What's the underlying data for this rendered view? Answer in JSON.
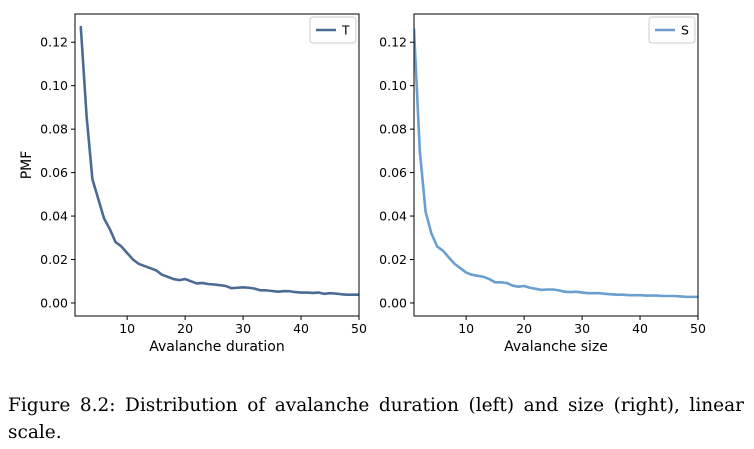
{
  "chart_data": [
    {
      "type": "line",
      "xlabel": "Avalanche duration",
      "ylabel": "PMF",
      "xlim": [
        1,
        50
      ],
      "ylim": [
        -0.006,
        0.133
      ],
      "xticks": [
        "10",
        "20",
        "30",
        "40",
        "50"
      ],
      "yticks": [
        "0.00",
        "0.02",
        "0.04",
        "0.06",
        "0.08",
        "0.10",
        "0.12"
      ],
      "legend_position": "top-right",
      "series": [
        {
          "name": "T",
          "color": "#4c6b94",
          "x": [
            2,
            3,
            4,
            5,
            6,
            7,
            8,
            9,
            10,
            11,
            12,
            13,
            14,
            15,
            16,
            17,
            18,
            19,
            20,
            21,
            22,
            23,
            24,
            25,
            26,
            27,
            28,
            29,
            30,
            31,
            32,
            33,
            34,
            35,
            36,
            37,
            38,
            39,
            40,
            41,
            42,
            43,
            44,
            45,
            46,
            47,
            48,
            49,
            50
          ],
          "y": [
            0.127,
            0.086,
            0.057,
            0.048,
            0.039,
            0.034,
            0.028,
            0.026,
            0.023,
            0.02,
            0.018,
            0.017,
            0.016,
            0.015,
            0.013,
            0.012,
            0.011,
            0.0105,
            0.011,
            0.01,
            0.009,
            0.0092,
            0.0087,
            0.0085,
            0.0082,
            0.0078,
            0.0068,
            0.007,
            0.0072,
            0.007,
            0.0066,
            0.0058,
            0.0058,
            0.0055,
            0.0052,
            0.0054,
            0.0054,
            0.005,
            0.0048,
            0.0048,
            0.0046,
            0.0048,
            0.0042,
            0.0045,
            0.0043,
            0.004,
            0.0038,
            0.0038,
            0.0038
          ]
        }
      ]
    },
    {
      "type": "line",
      "xlabel": "Avalanche size",
      "ylabel": "",
      "xlim": [
        1,
        50
      ],
      "ylim": [
        -0.006,
        0.133
      ],
      "xticks": [
        "10",
        "20",
        "30",
        "40",
        "50"
      ],
      "yticks": [
        "0.00",
        "0.02",
        "0.04",
        "0.06",
        "0.08",
        "0.10",
        "0.12"
      ],
      "legend_position": "top-right",
      "series": [
        {
          "name": "S",
          "color": "#6a9fd0",
          "x": [
            1,
            2,
            3,
            4,
            5,
            6,
            7,
            8,
            9,
            10,
            11,
            12,
            13,
            14,
            15,
            16,
            17,
            18,
            19,
            20,
            21,
            22,
            23,
            24,
            25,
            26,
            27,
            28,
            29,
            30,
            31,
            32,
            33,
            34,
            35,
            36,
            37,
            38,
            39,
            40,
            41,
            42,
            43,
            44,
            45,
            46,
            47,
            48,
            49,
            50
          ],
          "y": [
            0.126,
            0.07,
            0.042,
            0.032,
            0.026,
            0.024,
            0.021,
            0.018,
            0.016,
            0.014,
            0.013,
            0.0125,
            0.012,
            0.011,
            0.0095,
            0.0095,
            0.0092,
            0.008,
            0.0075,
            0.0078,
            0.007,
            0.0065,
            0.006,
            0.0062,
            0.0062,
            0.0058,
            0.0052,
            0.005,
            0.0052,
            0.0048,
            0.0045,
            0.0045,
            0.0045,
            0.0042,
            0.004,
            0.0038,
            0.0038,
            0.0036,
            0.0036,
            0.0036,
            0.0034,
            0.0034,
            0.0034,
            0.0032,
            0.0032,
            0.0032,
            0.003,
            0.0028,
            0.0028,
            0.0028
          ]
        }
      ]
    }
  ],
  "caption": "Figure 8.2: Distribution of avalanche duration (left) and size (right), linear scale."
}
